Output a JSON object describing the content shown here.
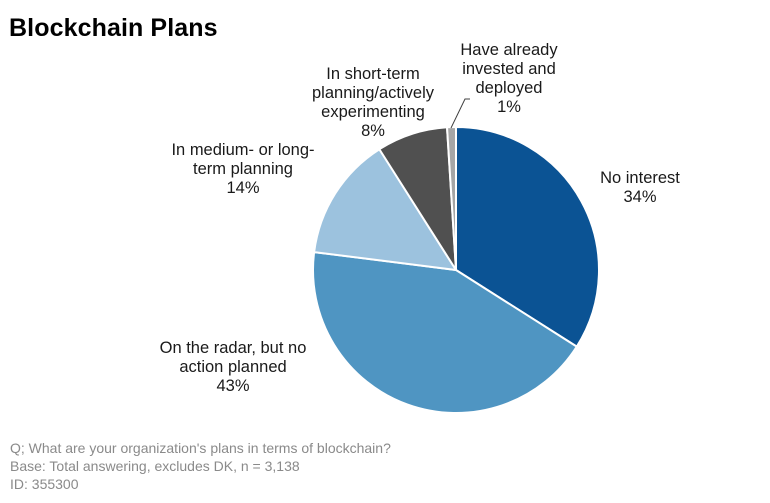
{
  "chart_data": {
    "type": "pie",
    "title": "Blockchain Plans",
    "slices": [
      {
        "label_lines": [
          "No interest"
        ],
        "pct_label": "34%",
        "value": 34,
        "color": "#0b5394"
      },
      {
        "label_lines": [
          "On the radar, but no",
          "action planned"
        ],
        "pct_label": "43%",
        "value": 43,
        "color": "#4f95c2"
      },
      {
        "label_lines": [
          "In medium- or long-",
          "term planning"
        ],
        "pct_label": "14%",
        "value": 14,
        "color": "#9cc2de"
      },
      {
        "label_lines": [
          "In short-term",
          "planning/actively",
          "experimenting"
        ],
        "pct_label": "8%",
        "value": 8,
        "color": "#505050"
      },
      {
        "label_lines": [
          "Have already",
          "invested and",
          "deployed"
        ],
        "pct_label": "1%",
        "value": 1,
        "color": "#a6a6a6"
      }
    ]
  },
  "footnote": {
    "question": "Q; What are your organization's plans in terms of blockchain?",
    "base": "Base: Total answering, excludes DK, n = 3,138",
    "id": "ID: 355300"
  }
}
